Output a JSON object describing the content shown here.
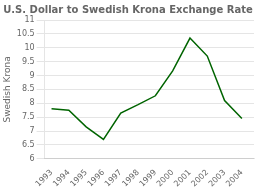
{
  "chart_data": {
    "type": "line",
    "title": "U.S. Dollar to Swedish Krona Exchange Rate",
    "ylabel": "Swedish Krona",
    "x": [
      1993,
      1994,
      1995,
      1996,
      1997,
      1998,
      1999,
      2000,
      2001,
      2002,
      2003,
      2004
    ],
    "values": [
      7.8,
      7.75,
      7.15,
      6.7,
      7.65,
      7.95,
      8.27,
      9.17,
      10.35,
      9.7,
      8.1,
      7.45
    ],
    "color": "#006400",
    "xlim": [
      1992.6,
      2004.7
    ],
    "xticks": [
      1993,
      1994,
      1995,
      1996,
      1997,
      1998,
      1999,
      2000,
      2001,
      2002,
      2003,
      2004
    ],
    "ylim": [
      6,
      11
    ],
    "yticks": [
      6,
      6.5,
      7,
      7.5,
      8,
      8.5,
      9,
      9.5,
      10,
      10.5,
      11
    ],
    "grid": "y"
  }
}
